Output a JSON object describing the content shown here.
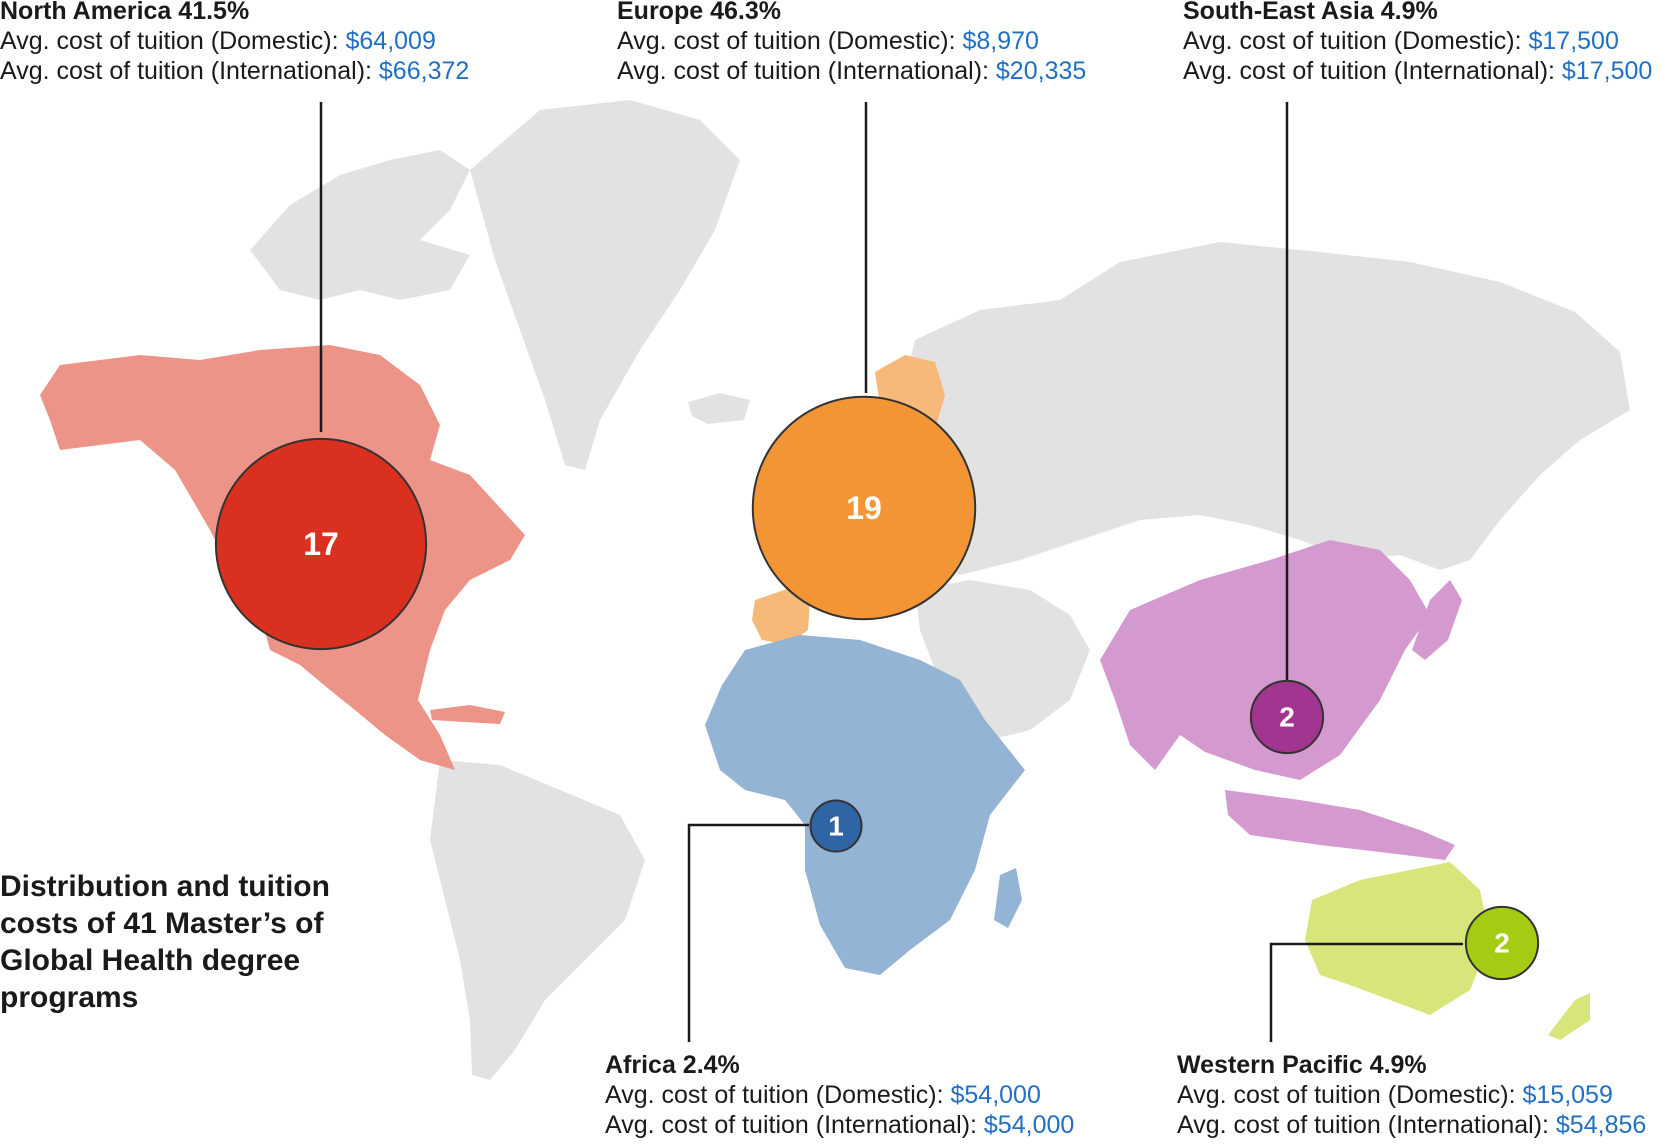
{
  "title": "Distribution and tuition costs of 41 Master’s of Global Health degree programs",
  "cost_labels": {
    "domestic": "Avg. cost of tuition (Domestic): ",
    "international": "Avg. cost of tuition (International): "
  },
  "colors": {
    "land_gray": "#e2e2e2",
    "cost_text": "#1f6fc5"
  },
  "regions": [
    {
      "key": "north_america",
      "name": "North America 41.5%",
      "share_percent": 41.5,
      "domestic": "$64,009",
      "international": "$66,372",
      "program_count": 17,
      "bubble_color": "#d9301f",
      "land_color": "#ec9487"
    },
    {
      "key": "europe",
      "name": "Europe 46.3%",
      "share_percent": 46.3,
      "domestic": "$8,970",
      "international": "$20,335",
      "program_count": 19,
      "bubble_color": "#f39534",
      "land_color": "#f6b97a"
    },
    {
      "key": "south_east_asia",
      "name": "South-East Asia 4.9%",
      "share_percent": 4.9,
      "domestic": "$17,500",
      "international": "$17,500",
      "program_count": 2,
      "bubble_color": "#a2358f",
      "land_color": "#d49ad0"
    },
    {
      "key": "africa",
      "name": "Africa 2.4%",
      "share_percent": 2.4,
      "domestic": "$54,000",
      "international": "$54,000",
      "program_count": 1,
      "bubble_color": "#2f65a5",
      "land_color": "#93b4d4"
    },
    {
      "key": "western_pacific",
      "name": "Western Pacific 4.9%",
      "share_percent": 4.9,
      "domestic": "$15,059",
      "international": "$54,856",
      "program_count": 2,
      "bubble_color": "#a5cc12",
      "land_color": "#d7e57b"
    }
  ]
}
